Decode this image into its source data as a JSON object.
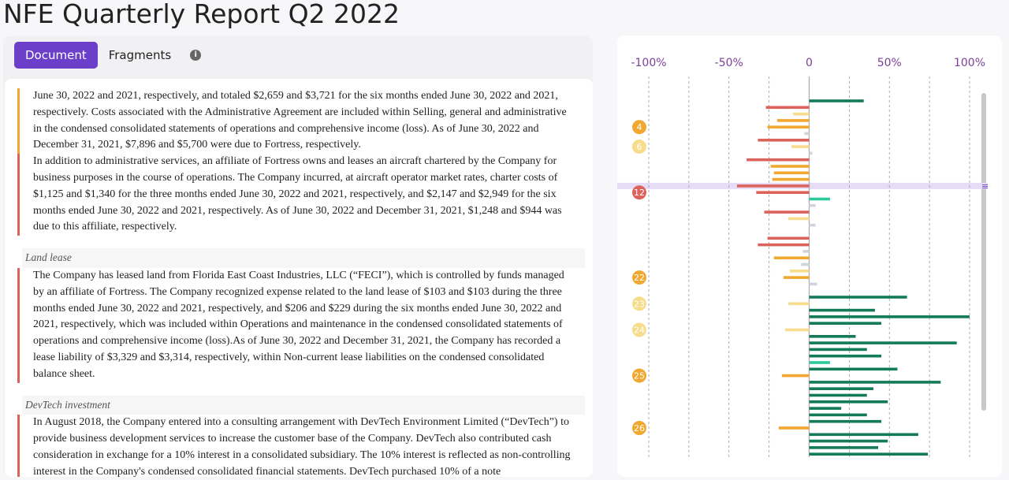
{
  "header": {
    "title": "NFE Quarterly Report Q2 2022"
  },
  "tabs": {
    "items": [
      "Document",
      "Fragments"
    ],
    "active": 0
  },
  "document": {
    "blocks": [
      {
        "text": "June 30, 2022 and 2021, respectively, and totaled $2,659 and $3,721 for the six months ended June 30, 2022 and 2021, respectively. Costs associated with the Administrative Agreement are included within Selling, general and administrative in the condensed consolidated statements of operations and comprehensive income (loss). As of June 30, 2022 and December 31, 2021, $7,896 and $5,700 were due to Fortress, respectively.",
        "accent": "#f0a830"
      },
      {
        "text": "In addition to administrative services, an affiliate of Fortress owns and leases an aircraft chartered by the Company for business purposes in the course of operations. The Company incurred, at aircraft operator market rates, charter costs of $1,125 and $1,340 for the three months ended June 30, 2022 and 2021, respectively, and $2,147 and $2,949 for the six months ended June 30, 2022 and 2021, respectively. As of June 30, 2022 and December 31, 2021, $1,248 and $944 was due to this affiliate, respectively.",
        "accent": "#dc625c"
      },
      {
        "heading": "Land lease"
      },
      {
        "text": "The Company has leased land from Florida East Coast Industries, LLC (“FECI”), which is controlled by funds managed by an affiliate of Fortress. The Company recognized expense related to the land lease of $103 and $103 during the three months ended June 30, 2022 and 2021, respectively, and $206 and $229 during the six months ended June 30, 2022 and 2021, respectively, which was included within Operations and maintenance in the condensed consolidated statements of operations and comprehensive income (loss).As of June 30, 2022 and December 31, 2021, the Company has recorded a lease liability of $3,329 and $3,314, respectively, within Non-current lease liabilities on the condensed consolidated balance sheet.",
        "accent": "#dc625c"
      },
      {
        "heading": "DevTech investment"
      },
      {
        "text": "In August 2018, the Company entered into a consulting arrangement with DevTech Environment Limited (“DevTech”) to provide business development services to increase the customer base of the Company. DevTech also contributed cash consideration in exchange for a 10% interest in a consolidated subsidiary. The 10% interest is reflected as non-controlling interest in the Company's condensed consolidated financial statements. DevTech purchased 10% of a note",
        "accent": "#dc625c"
      }
    ]
  },
  "chart_data": {
    "type": "bar",
    "orientation": "horizontal",
    "xlim": [
      -100,
      100
    ],
    "xticks": [
      {
        "value": -100,
        "label": "-100%"
      },
      {
        "value": -50,
        "label": "-50%"
      },
      0,
      {
        "value": 50,
        "label": "50%"
      },
      {
        "value": 100,
        "label": "100%"
      }
    ],
    "minor_xticks": [
      -75,
      -25,
      25,
      75
    ],
    "highlight": 13,
    "categories": [
      null,
      null,
      null,
      null,
      "4",
      null,
      null,
      "6",
      null,
      null,
      null,
      null,
      null,
      null,
      "12",
      null,
      null,
      null,
      null,
      null,
      null,
      null,
      null,
      null,
      null,
      null,
      null,
      "22",
      null,
      null,
      null,
      "23",
      null,
      null,
      null,
      "24",
      null,
      null,
      null,
      null,
      null,
      null,
      "25",
      null,
      null,
      null,
      null,
      null,
      null,
      null,
      "26",
      null,
      null,
      null,
      null
    ],
    "values": [
      34,
      -27,
      -10,
      -20,
      -26,
      -3,
      -32,
      -11,
      2,
      -39,
      -24,
      -22,
      -23,
      -45,
      -33,
      13,
      4,
      -28,
      -13,
      4,
      null,
      -26,
      -32,
      -4,
      -22,
      -5,
      -12,
      -16,
      5,
      null,
      61,
      -13,
      41,
      100,
      45,
      -15,
      29,
      92,
      36,
      45,
      13,
      55,
      -17,
      82,
      40,
      36,
      49,
      20,
      36,
      45,
      -19,
      68,
      49,
      43,
      74
    ],
    "colors": [
      "#137a5a",
      "#dc625c",
      "#f7dc8c",
      "#f0a830",
      "#f0a830",
      "#d0d4dc",
      "#dc625c",
      "#f7dc8c",
      "#d0d4dc",
      "#dc625c",
      "#f0a830",
      "#f0a830",
      "#f0a830",
      "#dc625c",
      "#dc625c",
      "#2ec99a",
      "#d0d4dc",
      "#dc625c",
      "#f7dc8c",
      "#d0d4dc",
      null,
      "#dc625c",
      "#dc625c",
      "#d0d4dc",
      "#f0a830",
      "#d0d4dc",
      "#f7dc8c",
      "#f0a830",
      "#d0d4dc",
      null,
      "#137a5a",
      "#f7dc8c",
      "#137a5a",
      "#137a5a",
      "#137a5a",
      "#f7dc8c",
      "#137a5a",
      "#137a5a",
      "#137a5a",
      "#137a5a",
      "#2ec99a",
      "#137a5a",
      "#f0a830",
      "#137a5a",
      "#137a5a",
      "#137a5a",
      "#137a5a",
      "#137a5a",
      "#137a5a",
      "#137a5a",
      "#f0a830",
      "#137a5a",
      "#137a5a",
      "#137a5a",
      "#137a5a"
    ]
  }
}
